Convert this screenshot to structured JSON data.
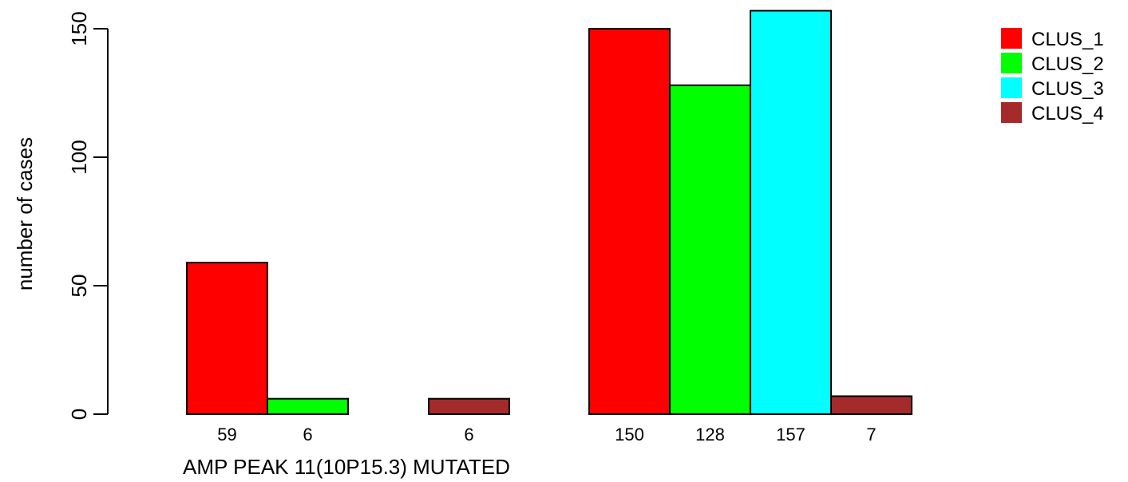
{
  "chart_data": {
    "type": "bar",
    "xlabel": "AMP PEAK 11(10P15.3) MUTATED",
    "ylabel": "number of cases",
    "ylim": [
      0,
      157
    ],
    "yticks": [
      0,
      50,
      100,
      150
    ],
    "groups": [
      "",
      ""
    ],
    "series": [
      {
        "name": "CLUS_1",
        "color": "#ff0000",
        "values": [
          59,
          150
        ],
        "labels": [
          "59",
          "150"
        ]
      },
      {
        "name": "CLUS_2",
        "color": "#00ff00",
        "values": [
          6,
          128
        ],
        "labels": [
          "6",
          "128"
        ]
      },
      {
        "name": "CLUS_3",
        "color": "#00ffff",
        "values": [
          0,
          157
        ],
        "labels": [
          "",
          "157"
        ]
      },
      {
        "name": "CLUS_4",
        "color": "#a52a2a",
        "values": [
          6,
          7
        ],
        "labels": [
          "6",
          "7"
        ]
      }
    ],
    "legend_position": "top-right",
    "grid": false
  }
}
